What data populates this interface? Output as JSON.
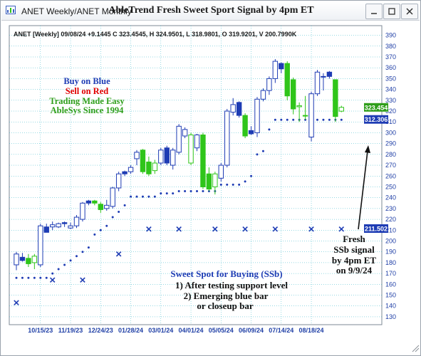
{
  "window": {
    "title": "ANET Weekly/ANET Monthly",
    "icon": "chart-window-icon"
  },
  "chart_data": {
    "type": "candlestick",
    "title": "AbleTrend Fresh Sweet Sport Signal by 4pm ET",
    "info_line": "ANET [Weekly] 09/08/24 +9.1445 C 323.4545, H 324.9501, L 318.9801, O 319.9201, V 200.7990K",
    "y_ticks": [
      130,
      140,
      150,
      160,
      170,
      180,
      190,
      200,
      210,
      220,
      230,
      240,
      250,
      260,
      270,
      280,
      290,
      300,
      310,
      320,
      330,
      340,
      350,
      360,
      370,
      380,
      390
    ],
    "ylim": [
      127,
      394
    ],
    "x_labels": [
      "10/15/23",
      "11/19/23",
      "12/24/23",
      "01/28/24",
      "03/01/24",
      "04/01/24",
      "05/05/24",
      "06/09/24",
      "07/14/24",
      "08/18/24"
    ],
    "x_label_positions": [
      4,
      9,
      14,
      19,
      24,
      29,
      34,
      39,
      44,
      49
    ],
    "price_labels": [
      {
        "value": 323.454,
        "text": "323.454",
        "color": "#2e9e1a"
      },
      {
        "value": 312.306,
        "text": "312.306",
        "color": "#1e3cb4"
      },
      {
        "value": 211.502,
        "text": "211.502",
        "color": "#1e3cb4"
      }
    ],
    "candles": [
      {
        "o": 178,
        "h": 190,
        "l": 173,
        "c": 188,
        "color": "blue",
        "hollow": true
      },
      {
        "o": 185,
        "h": 189,
        "l": 181,
        "c": 182,
        "color": "blue",
        "hollow": false
      },
      {
        "o": 184,
        "h": 188,
        "l": 176,
        "c": 179,
        "color": "green",
        "hollow": false
      },
      {
        "o": 180,
        "h": 188,
        "l": 174,
        "c": 186,
        "color": "green",
        "hollow": true
      },
      {
        "o": 178,
        "h": 216,
        "l": 176,
        "c": 214,
        "color": "blue",
        "hollow": true
      },
      {
        "o": 208,
        "h": 216,
        "l": 208,
        "c": 213,
        "color": "blue",
        "hollow": false
      },
      {
        "o": 213,
        "h": 218,
        "l": 210,
        "c": 215,
        "color": "blue",
        "hollow": true
      },
      {
        "o": 213,
        "h": 217,
        "l": 212,
        "c": 216,
        "color": "blue",
        "hollow": true
      },
      {
        "o": 216,
        "h": 218,
        "l": 213,
        "c": 217,
        "color": "blue",
        "hollow": false
      },
      {
        "o": 212,
        "h": 217,
        "l": 211,
        "c": 214,
        "color": "blue",
        "hollow": true
      },
      {
        "o": 214,
        "h": 224,
        "l": 212,
        "c": 222,
        "color": "blue",
        "hollow": true
      },
      {
        "o": 220,
        "h": 236,
        "l": 218,
        "c": 235,
        "color": "blue",
        "hollow": true
      },
      {
        "o": 235,
        "h": 238,
        "l": 233,
        "c": 237,
        "color": "blue",
        "hollow": false
      },
      {
        "o": 237,
        "h": 238,
        "l": 233,
        "c": 235,
        "color": "green",
        "hollow": false
      },
      {
        "o": 234,
        "h": 236,
        "l": 226,
        "c": 229,
        "color": "green",
        "hollow": false
      },
      {
        "o": 230,
        "h": 238,
        "l": 228,
        "c": 233,
        "color": "blue",
        "hollow": true
      },
      {
        "o": 232,
        "h": 250,
        "l": 230,
        "c": 249,
        "color": "blue",
        "hollow": true
      },
      {
        "o": 249,
        "h": 264,
        "l": 246,
        "c": 262,
        "color": "blue",
        "hollow": true
      },
      {
        "o": 262,
        "h": 265,
        "l": 260,
        "c": 264,
        "color": "blue",
        "hollow": false
      },
      {
        "o": 264,
        "h": 270,
        "l": 262,
        "c": 268,
        "color": "blue",
        "hollow": true
      },
      {
        "o": 276,
        "h": 284,
        "l": 270,
        "c": 282,
        "color": "blue",
        "hollow": true
      },
      {
        "o": 284,
        "h": 285,
        "l": 262,
        "c": 264,
        "color": "green",
        "hollow": false
      },
      {
        "o": 273,
        "h": 278,
        "l": 260,
        "c": 262,
        "color": "green",
        "hollow": false
      },
      {
        "o": 265,
        "h": 275,
        "l": 262,
        "c": 272,
        "color": "green",
        "hollow": true
      },
      {
        "o": 272,
        "h": 286,
        "l": 270,
        "c": 284,
        "color": "blue",
        "hollow": true
      },
      {
        "o": 286,
        "h": 288,
        "l": 270,
        "c": 272,
        "color": "blue",
        "hollow": false
      },
      {
        "o": 270,
        "h": 286,
        "l": 266,
        "c": 284,
        "color": "blue",
        "hollow": true
      },
      {
        "o": 282,
        "h": 308,
        "l": 280,
        "c": 306,
        "color": "blue",
        "hollow": true
      },
      {
        "o": 303,
        "h": 305,
        "l": 295,
        "c": 297,
        "color": "blue",
        "hollow": true
      },
      {
        "o": 298,
        "h": 300,
        "l": 270,
        "c": 272,
        "color": "green",
        "hollow": true
      },
      {
        "o": 286,
        "h": 299,
        "l": 283,
        "c": 298,
        "color": "blue",
        "hollow": true
      },
      {
        "o": 298,
        "h": 300,
        "l": 248,
        "c": 250,
        "color": "green",
        "hollow": false
      },
      {
        "o": 262,
        "h": 268,
        "l": 246,
        "c": 248,
        "color": "green",
        "hollow": false
      },
      {
        "o": 250,
        "h": 264,
        "l": 243,
        "c": 262,
        "color": "green",
        "hollow": true
      },
      {
        "o": 258,
        "h": 272,
        "l": 255,
        "c": 270,
        "color": "blue",
        "hollow": true
      },
      {
        "o": 270,
        "h": 322,
        "l": 268,
        "c": 320,
        "color": "blue",
        "hollow": true
      },
      {
        "o": 319,
        "h": 332,
        "l": 316,
        "c": 326,
        "color": "blue",
        "hollow": true
      },
      {
        "o": 328,
        "h": 329,
        "l": 314,
        "c": 316,
        "color": "blue",
        "hollow": false
      },
      {
        "o": 316,
        "h": 318,
        "l": 295,
        "c": 297,
        "color": "green",
        "hollow": false
      },
      {
        "o": 302,
        "h": 306,
        "l": 298,
        "c": 299,
        "color": "blue",
        "hollow": false
      },
      {
        "o": 300,
        "h": 333,
        "l": 296,
        "c": 331,
        "color": "blue",
        "hollow": true
      },
      {
        "o": 331,
        "h": 341,
        "l": 329,
        "c": 339,
        "color": "blue",
        "hollow": true
      },
      {
        "o": 339,
        "h": 352,
        "l": 335,
        "c": 350,
        "color": "blue",
        "hollow": true
      },
      {
        "o": 350,
        "h": 368,
        "l": 346,
        "c": 366,
        "color": "blue",
        "hollow": true
      },
      {
        "o": 359,
        "h": 365,
        "l": 355,
        "c": 364,
        "color": "blue",
        "hollow": false
      },
      {
        "o": 364,
        "h": 366,
        "l": 330,
        "c": 334,
        "color": "green",
        "hollow": false
      },
      {
        "o": 349,
        "h": 351,
        "l": 317,
        "c": 322,
        "color": "green",
        "hollow": false
      },
      {
        "o": 325,
        "h": 328,
        "l": 310,
        "c": 324,
        "color": "green",
        "hollow": true
      },
      {
        "o": 316,
        "h": 334,
        "l": 312,
        "c": 316,
        "color": "green",
        "hollow": false
      },
      {
        "o": 296,
        "h": 338,
        "l": 292,
        "c": 336,
        "color": "blue",
        "hollow": true
      },
      {
        "o": 336,
        "h": 358,
        "l": 334,
        "c": 356,
        "color": "blue",
        "hollow": true
      },
      {
        "o": 352,
        "h": 355,
        "l": 339,
        "c": 352,
        "color": "blue",
        "hollow": true
      },
      {
        "o": 356,
        "h": 357,
        "l": 350,
        "c": 352,
        "color": "blue",
        "hollow": false
      },
      {
        "o": 349,
        "h": 349,
        "l": 310,
        "c": 315,
        "color": "green",
        "hollow": false
      },
      {
        "o": 319.92,
        "h": 324.95,
        "l": 318.98,
        "c": 323.45,
        "color": "green",
        "hollow": true
      }
    ],
    "stop_dots": [
      166,
      166,
      166,
      166,
      166,
      166,
      170,
      174,
      178,
      182,
      186,
      190,
      194,
      206,
      210,
      214,
      222,
      227,
      233,
      241,
      241,
      241,
      241,
      241,
      244,
      244,
      244,
      246,
      246,
      246,
      246,
      246,
      246,
      246,
      252,
      252,
      252,
      252,
      255,
      260,
      280,
      283,
      303,
      312,
      312,
      312,
      312,
      312,
      312,
      312,
      312,
      312,
      312,
      312,
      312
    ],
    "x_markers": [
      {
        "i": 0,
        "v": 143
      },
      {
        "i": 6,
        "v": 164
      },
      {
        "i": 11,
        "v": 164
      },
      {
        "i": 17,
        "v": 188
      },
      {
        "i": 22,
        "v": 211
      },
      {
        "i": 27,
        "v": 211
      },
      {
        "i": 33,
        "v": 211
      },
      {
        "i": 38,
        "v": 211
      },
      {
        "i": 43,
        "v": 211
      },
      {
        "i": 49,
        "v": 211
      },
      {
        "i": 54,
        "v": 211
      },
      {
        "i": 59,
        "v": 211
      }
    ],
    "legend_notes": [
      {
        "text": "Buy on Blue",
        "color": "#1e3cb4"
      },
      {
        "text": "Sell on Red",
        "color": "#e00000"
      },
      {
        "text": "Trading Made Easy",
        "color": "#2e9e1a"
      },
      {
        "text": "AbleSys Since 1994",
        "color": "#2e9e1a"
      }
    ],
    "annotation_sweet_spot": [
      "Sweet Spot for Buying (SSb)",
      "1) After testing support level",
      "2) Emerging blue bar",
      "or closeup bar"
    ],
    "annotation_signal": [
      "Fresh",
      "SSb signal",
      "by 4pm ET",
      "on 9/9/24"
    ],
    "colors": {
      "blue": "#1e3cb4",
      "green": "#2fc51a",
      "red": "#e00000",
      "grid": "#2fb3c7",
      "axis_text": "#1f3fa6"
    }
  }
}
